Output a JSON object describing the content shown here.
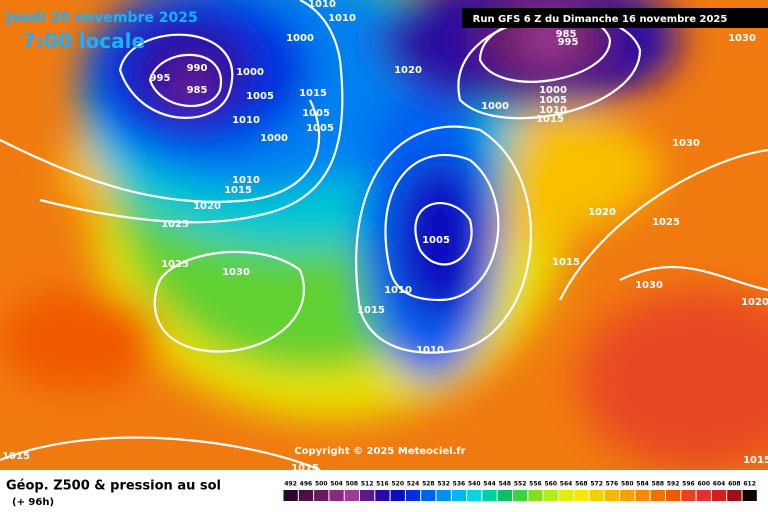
{
  "header": {
    "date": "Jeudi 20 novembre 2025",
    "time": "7:00 locale",
    "run": "Run GFS 6 Z du Dimanche 16 novembre 2025"
  },
  "copyright": "Copyright © 2025 Meteociel.fr",
  "footer": {
    "title": "Géop. Z500 & pression au sol",
    "lead": "(+ 96h)"
  },
  "isobar_labels": [
    "1010",
    "1010",
    "1000",
    "990",
    "995",
    "985",
    "1000",
    "1005",
    "1010",
    "1000",
    "1015",
    "1005",
    "1005",
    "1020",
    "1010",
    "1015",
    "1020",
    "1025",
    "1025",
    "1030",
    "1005",
    "1010",
    "1015",
    "1010",
    "1015",
    "1020",
    "1025",
    "1030",
    "1030",
    "985",
    "995",
    "1000",
    "1005",
    "1010",
    "1015",
    "1000",
    "1030",
    "1020",
    "1015",
    "1015",
    "1015"
  ],
  "legend": {
    "levels": [
      492,
      496,
      500,
      504,
      508,
      512,
      516,
      520,
      524,
      528,
      532,
      536,
      540,
      544,
      548,
      552,
      556,
      560,
      564,
      568,
      572,
      576,
      580,
      584,
      588,
      592,
      596,
      600,
      604,
      608,
      612
    ],
    "colors": [
      "#2a0a2a",
      "#4a1040",
      "#6a1a60",
      "#8a2a80",
      "#a03a9a",
      "#5a1a8a",
      "#2a0aa0",
      "#0a10c0",
      "#0030e0",
      "#0060f0",
      "#0090f0",
      "#00b8f0",
      "#00d8e0",
      "#00d0a0",
      "#10c060",
      "#40d040",
      "#80e020",
      "#b0f010",
      "#e0f000",
      "#f8e800",
      "#f8d000",
      "#f8b800",
      "#f8a000",
      "#f88800",
      "#f07000",
      "#f05800",
      "#e84020",
      "#e03030",
      "#d02020",
      "#a01010",
      "#100000"
    ]
  }
}
